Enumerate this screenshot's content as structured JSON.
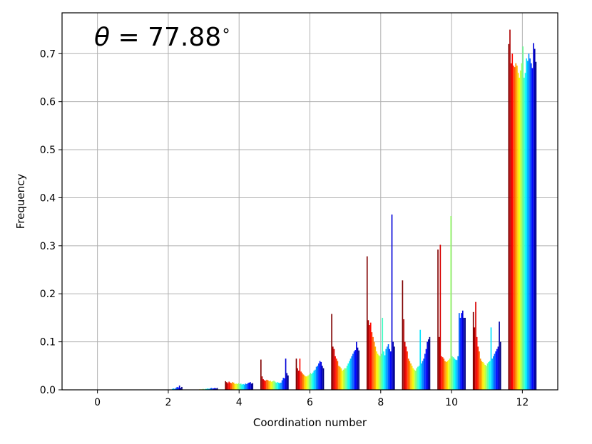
{
  "chart_data": {
    "type": "bar",
    "annotation": {
      "symbol": "θ",
      "text": " = 77.88",
      "suffix": "∘"
    },
    "xlabel": "Coordination number",
    "ylabel": "Frequency",
    "xlim": [
      -1,
      13
    ],
    "ylim": [
      0,
      0.785
    ],
    "xticks": [
      0,
      2,
      4,
      6,
      8,
      10,
      12
    ],
    "xtick_labels": [
      "0",
      "2",
      "4",
      "6",
      "8",
      "10",
      "12"
    ],
    "yticks": [
      0.0,
      0.1,
      0.2,
      0.3,
      0.4,
      0.5,
      0.6,
      0.7
    ],
    "ytick_labels": [
      "0.0",
      "0.1",
      "0.2",
      "0.3",
      "0.4",
      "0.5",
      "0.6",
      "0.7"
    ],
    "grid": true,
    "colormap": "jet",
    "series_per_group": 24,
    "groups": [
      {
        "x": 2,
        "values": [
          0,
          0,
          0,
          0,
          0,
          0,
          0,
          0,
          0,
          0,
          0,
          0,
          0,
          0,
          0,
          0.002,
          0.003,
          0.002,
          0.004,
          0.006,
          0.005,
          0.009,
          0.004,
          0.006
        ]
      },
      {
        "x": 3,
        "values": [
          0,
          0,
          0,
          0,
          0,
          0,
          0,
          0,
          0.001,
          0.001,
          0.001,
          0.002,
          0.001,
          0.002,
          0.002,
          0.003,
          0.002,
          0.003,
          0.004,
          0.003,
          0.003,
          0.004,
          0.003,
          0.004
        ]
      },
      {
        "x": 4,
        "values": [
          0.018,
          0.016,
          0.014,
          0.017,
          0.015,
          0.014,
          0.016,
          0.015,
          0.012,
          0.013,
          0.012,
          0.014,
          0.012,
          0.013,
          0.011,
          0.012,
          0.011,
          0.013,
          0.012,
          0.014,
          0.015,
          0.016,
          0.013,
          0.014
        ]
      },
      {
        "x": 5,
        "values": [
          0.063,
          0.028,
          0.022,
          0.02,
          0.019,
          0.021,
          0.02,
          0.018,
          0.019,
          0.017,
          0.018,
          0.019,
          0.017,
          0.015,
          0.016,
          0.015,
          0.014,
          0.015,
          0.02,
          0.025,
          0.024,
          0.065,
          0.035,
          0.03
        ]
      },
      {
        "x": 6,
        "values": [
          0.065,
          0.045,
          0.04,
          0.065,
          0.038,
          0.035,
          0.032,
          0.03,
          0.028,
          0.028,
          0.03,
          0.032,
          0.035,
          0.033,
          0.036,
          0.04,
          0.042,
          0.048,
          0.05,
          0.055,
          0.06,
          0.058,
          0.05,
          0.045
        ]
      },
      {
        "x": 7,
        "values": [
          0.158,
          0.09,
          0.085,
          0.07,
          0.065,
          0.06,
          0.05,
          0.048,
          0.045,
          0.04,
          0.042,
          0.045,
          0.045,
          0.05,
          0.055,
          0.06,
          0.065,
          0.07,
          0.075,
          0.08,
          0.083,
          0.1,
          0.088,
          0.082
        ]
      },
      {
        "x": 8,
        "values": [
          0.278,
          0.145,
          0.135,
          0.14,
          0.12,
          0.11,
          0.1,
          0.09,
          0.08,
          0.075,
          0.072,
          0.07,
          0.075,
          0.15,
          0.08,
          0.072,
          0.085,
          0.09,
          0.095,
          0.085,
          0.08,
          0.365,
          0.1,
          0.09
        ]
      },
      {
        "x": 9,
        "values": [
          0.228,
          0.147,
          0.1,
          0.09,
          0.08,
          0.065,
          0.06,
          0.055,
          0.05,
          0.045,
          0.042,
          0.04,
          0.045,
          0.048,
          0.05,
          0.125,
          0.055,
          0.06,
          0.065,
          0.075,
          0.085,
          0.1,
          0.105,
          0.11
        ]
      },
      {
        "x": 10,
        "values": [
          0.292,
          0.11,
          0.302,
          0.07,
          0.068,
          0.065,
          0.06,
          0.058,
          0.06,
          0.062,
          0.065,
          0.362,
          0.07,
          0.068,
          0.065,
          0.063,
          0.062,
          0.07,
          0.16,
          0.15,
          0.16,
          0.165,
          0.15,
          0.15
        ]
      },
      {
        "x": 11,
        "values": [
          0.162,
          0.13,
          0.183,
          0.11,
          0.09,
          0.08,
          0.065,
          0.06,
          0.058,
          0.055,
          0.052,
          0.05,
          0.055,
          0.058,
          0.06,
          0.13,
          0.065,
          0.07,
          0.075,
          0.08,
          0.085,
          0.09,
          0.142,
          0.1
        ]
      },
      {
        "x": 12,
        "values": [
          0.72,
          0.75,
          0.68,
          0.7,
          0.675,
          0.672,
          0.68,
          0.675,
          0.66,
          0.65,
          0.665,
          0.68,
          0.715,
          0.65,
          0.66,
          0.69,
          0.685,
          0.7,
          0.69,
          0.68,
          0.67,
          0.722,
          0.71,
          0.683
        ]
      }
    ]
  }
}
